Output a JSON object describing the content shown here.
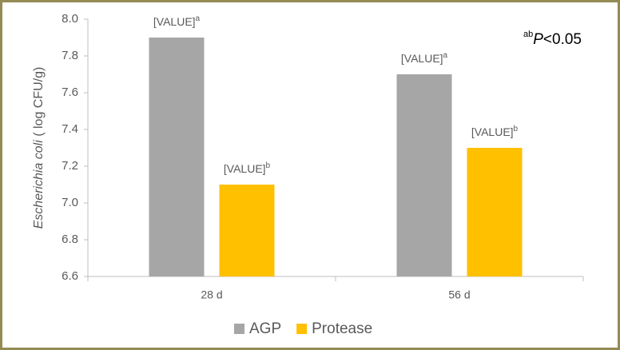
{
  "chart_data": {
    "type": "bar",
    "categories": [
      "28 d",
      "56 d"
    ],
    "series": [
      {
        "name": "AGP",
        "color": "#a6a6a6",
        "values": [
          7.9,
          7.7
        ],
        "value_labels": [
          "[VALUE]",
          "[VALUE]"
        ],
        "superscripts": [
          "a",
          "a"
        ]
      },
      {
        "name": "Protease",
        "color": "#ffc000",
        "values": [
          7.1,
          7.3
        ],
        "value_labels": [
          "[VALUE]",
          "[VALUE]"
        ],
        "superscripts": [
          "b",
          "b"
        ]
      }
    ],
    "ylabel": {
      "italic": "Escherichia coli",
      "text": " ( log CFU/g)"
    },
    "annotation": {
      "sup": "ab",
      "italic": "P",
      "text": "<0.05"
    },
    "ylim": [
      6.6,
      8.0
    ],
    "yticks": [
      6.6,
      6.8,
      {
        "value": 7.0,
        "label": "7.0"
      },
      7.2,
      7.4,
      7.6,
      7.8,
      {
        "value": 8.0,
        "label": "8.0"
      }
    ],
    "grid": false,
    "legend": "bottom"
  }
}
